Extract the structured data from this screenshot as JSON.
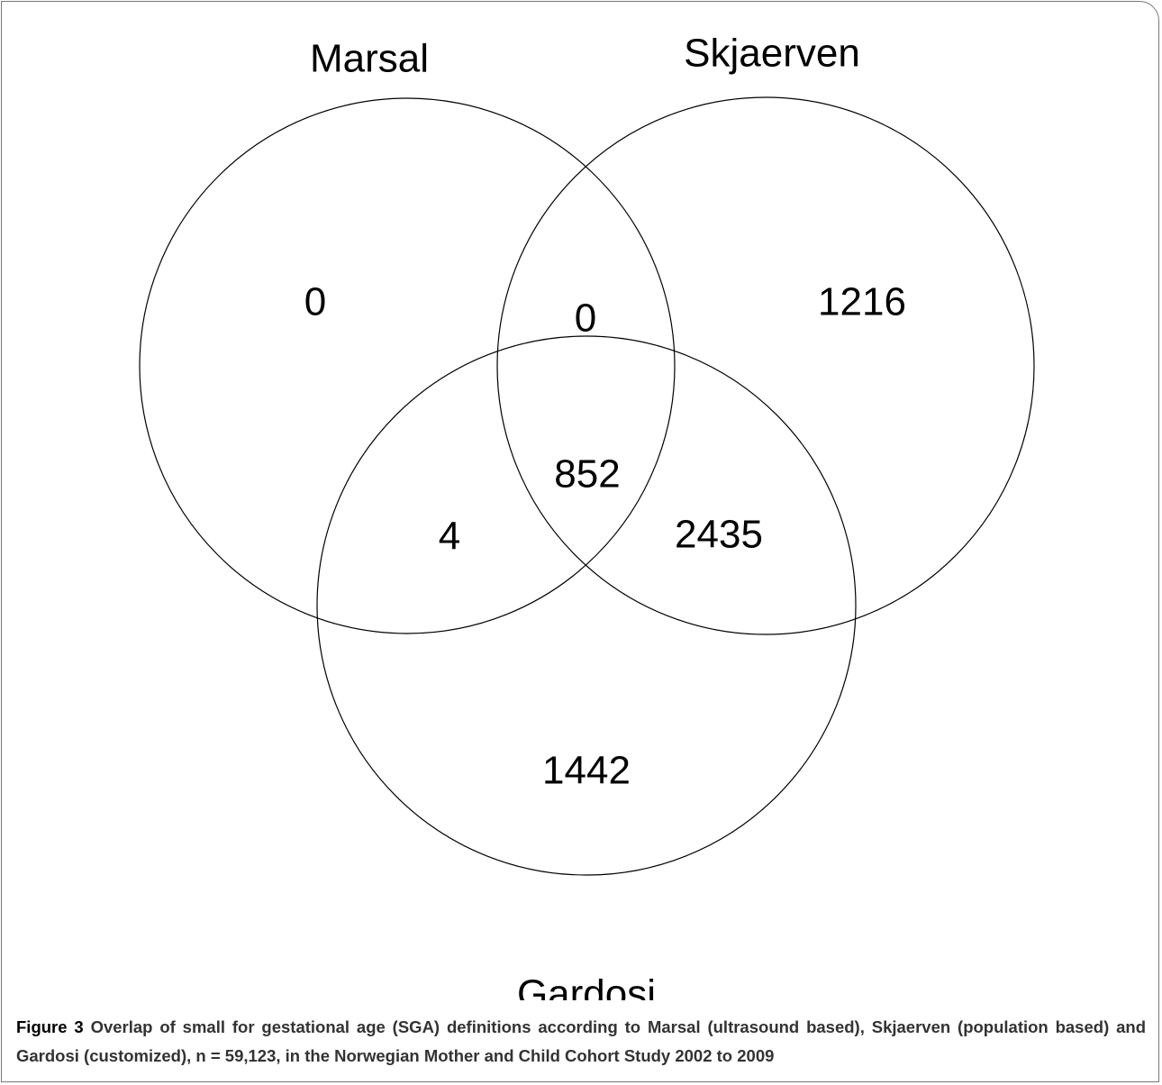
{
  "sets": [
    "Marsal",
    "Skjaerven",
    "Gardosi"
  ],
  "regions": {
    "marsal_only": "0",
    "marsal_skjaerven": "0",
    "skjaerven_only": "1216",
    "all": "852",
    "marsal_gardosi": "4",
    "skjaerven_gardosi": "2435",
    "gardosi_only": "1442"
  },
  "caption": {
    "label": "Figure 3",
    "text": "Overlap of small for gestational age (SGA) definitions according to Marsal (ultrasound based), Skjaerven (population based) and Gardosi (customized), n = 59,123, in the Norwegian Mother and Child Cohort Study 2002 to 2009"
  }
}
